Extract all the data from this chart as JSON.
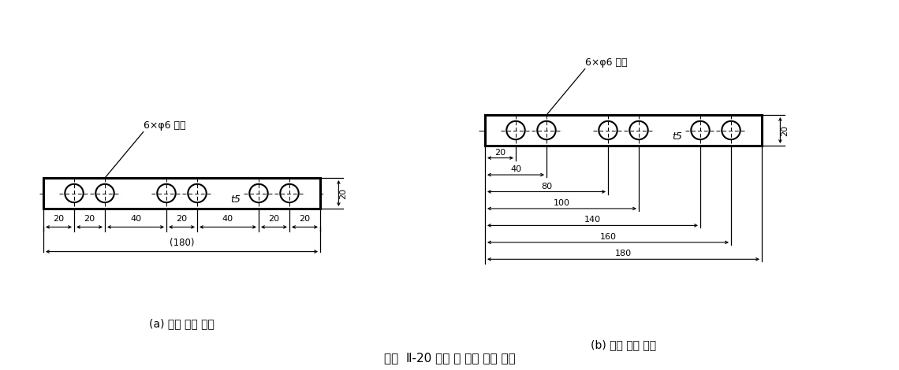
{
  "bg_color": "#ffffff",
  "line_color": "#000000",
  "title": "그림  Ⅱ-20 직렬 및 병렬 치수 기입",
  "caption_a": "(a) 직렬 치수 기입",
  "caption_b": "(b) 병렬 치수 기입",
  "label_hole": "6×φ6 구명",
  "label_t5": "t5",
  "hole_offsets": [
    20,
    40,
    80,
    100,
    140,
    160
  ],
  "seg_labels_a": [
    "20",
    "20",
    "40",
    "20",
    "40",
    "20",
    "20"
  ],
  "parallel_labels_b": [
    "20",
    "40",
    "80",
    "100",
    "140",
    "160",
    "180"
  ],
  "parallel_targets_b": [
    20,
    40,
    80,
    100,
    140,
    160,
    180
  ],
  "dim_label_20": "20",
  "total_label": "(180)"
}
